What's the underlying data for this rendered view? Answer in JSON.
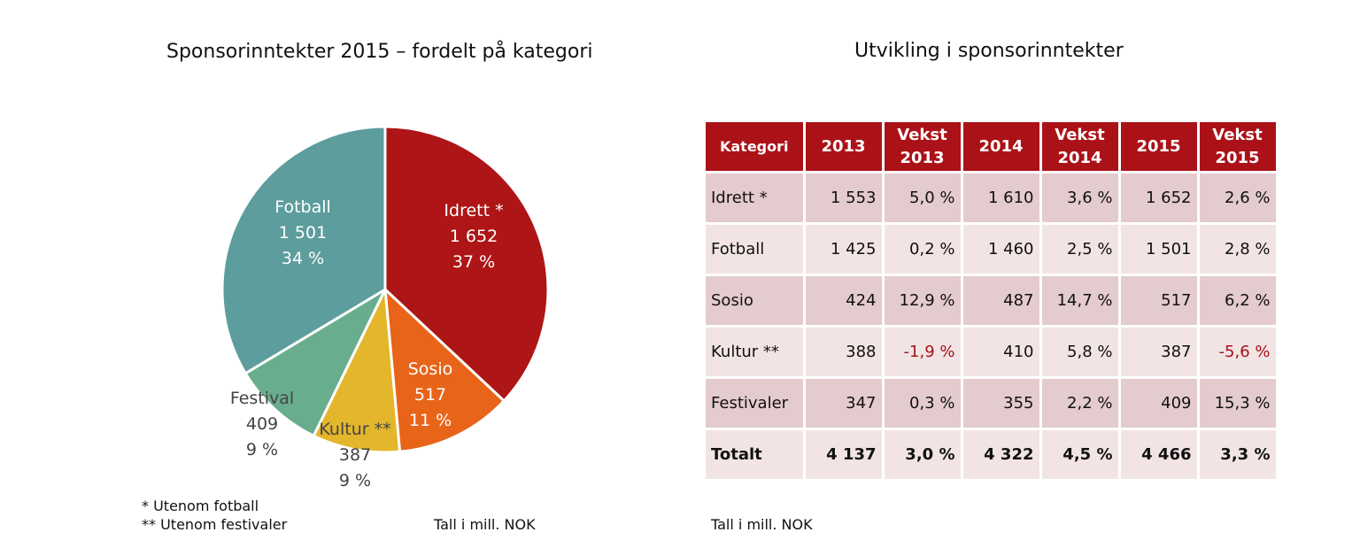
{
  "chart_data": [
    {
      "type": "pie",
      "title": "Sponsorinntekter 2015 – fordelt på kategori",
      "slices": [
        {
          "label": "Idrett *",
          "value": 1652,
          "value_text": "1 652",
          "percent_text": "37 %",
          "color": "#ad1516"
        },
        {
          "label": "Sosio",
          "value": 517,
          "value_text": "517",
          "percent_text": "11 %",
          "color": "#e86419"
        },
        {
          "label": "Kultur **",
          "value": 387,
          "value_text": "387",
          "percent_text": "9 %",
          "color": "#e3b62b"
        },
        {
          "label": "Festival",
          "value": 409,
          "value_text": "409",
          "percent_text": "9 %",
          "color": "#68ad8d"
        },
        {
          "label": "Fotball",
          "value": 1501,
          "value_text": "1 501",
          "percent_text": "34 %",
          "color": "#5d9d9d"
        }
      ]
    },
    {
      "type": "table",
      "title": "Utvikling i sponsorinntekter",
      "headers": [
        "Kategori",
        "2013",
        "Vekst 2013",
        "2014",
        "Vekst 2014",
        "2015",
        "Vekst 2015"
      ],
      "rows": [
        [
          "Idrett *",
          "1 553",
          "5,0 %",
          "1 610",
          "3,6 %",
          "1 652",
          "2,6 %"
        ],
        [
          "Fotball",
          "1 425",
          "0,2 %",
          "1 460",
          "2,5 %",
          "1 501",
          "2,8 %"
        ],
        [
          "Sosio",
          "424",
          "12,9 %",
          "487",
          "14,7 %",
          "517",
          "6,2 %"
        ],
        [
          "Kultur **",
          "388",
          "-1,9 %",
          "410",
          "5,8 %",
          "387",
          "-5,6 %"
        ],
        [
          "Festivaler",
          "347",
          "0,3 %",
          "355",
          "2,2 %",
          "409",
          "15,3 %"
        ],
        [
          "Totalt",
          "4 137",
          "3,0 %",
          "4 322",
          "4,5 %",
          "4 466",
          "3,3 %"
        ]
      ]
    }
  ],
  "notes": {
    "idrett_note": "* Utenom fotball",
    "kultur_note": "** Utenom festivaler",
    "unit_left": "Tall i mill. NOK",
    "unit_right": "Tall i mill. NOK"
  },
  "colors": {
    "table_header": "#ab1218",
    "row_odd": "#e4cbcd",
    "row_even": "#f2e4e5",
    "negative_text": "#a51218",
    "label_dark": "#444444"
  }
}
